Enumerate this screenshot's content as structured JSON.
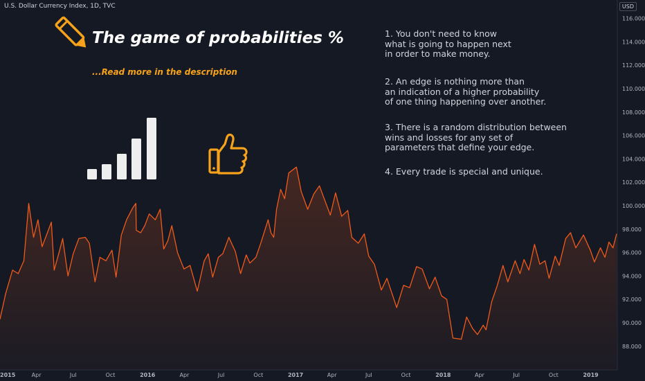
{
  "header": {
    "symbol_title": "U.S. Dollar Currency Index, 1D, TVC",
    "currency": "USD"
  },
  "overlay": {
    "headline": "The game of probabilities %",
    "subline": "...Read more in the description",
    "notes": [
      "1. You don't need to know\nwhat is going to happen next\nin order to make money.",
      "2. An edge is nothing more than\nan indication of a higher probability\nof one thing happening over another.",
      "3. There is a random distribution between\nwins and losses for any set of\nparameters that define your edge.",
      "4. Every trade is special and unique."
    ],
    "icons": [
      "pencil-icon",
      "signal-bars-icon",
      "thumbs-up-icon"
    ],
    "accent_color": "#f7a21b"
  },
  "chart_data": {
    "type": "area",
    "title": "U.S. Dollar Currency Index, 1D, TVC",
    "ylim": [
      86.0,
      117.0
    ],
    "y_ticks": [
      "88.000",
      "90.000",
      "92.000",
      "94.000",
      "96.000",
      "98.000",
      "100.000",
      "102.000",
      "104.000",
      "106.000",
      "108.000",
      "110.000",
      "112.000",
      "114.000",
      "116.000"
    ],
    "x_ticks": [
      "2015",
      "Apr",
      "Jul",
      "Oct",
      "2016",
      "Apr",
      "Jul",
      "Oct",
      "2017",
      "Apr",
      "Jul",
      "Oct",
      "2018",
      "Apr",
      "Jul",
      "Oct",
      "2019"
    ],
    "x_range": [
      "2015-01-01",
      "2019-03-06"
    ],
    "line_color": "#f05a1a",
    "series": [
      {
        "values": [
          {
            "x": "2015-01-01",
            "y": 90.3
          },
          {
            "x": "2015-01-15",
            "y": 92.5
          },
          {
            "x": "2015-02-01",
            "y": 94.5
          },
          {
            "x": "2015-02-15",
            "y": 94.2
          },
          {
            "x": "2015-03-01",
            "y": 95.3
          },
          {
            "x": "2015-03-13",
            "y": 100.2
          },
          {
            "x": "2015-03-25",
            "y": 97.3
          },
          {
            "x": "2015-04-05",
            "y": 98.8
          },
          {
            "x": "2015-04-15",
            "y": 96.5
          },
          {
            "x": "2015-04-25",
            "y": 97.4
          },
          {
            "x": "2015-05-08",
            "y": 98.6
          },
          {
            "x": "2015-05-15",
            "y": 94.5
          },
          {
            "x": "2015-05-27",
            "y": 96.0
          },
          {
            "x": "2015-06-05",
            "y": 97.2
          },
          {
            "x": "2015-06-18",
            "y": 94.0
          },
          {
            "x": "2015-07-01",
            "y": 95.9
          },
          {
            "x": "2015-07-15",
            "y": 97.2
          },
          {
            "x": "2015-07-31",
            "y": 97.3
          },
          {
            "x": "2015-08-10",
            "y": 96.8
          },
          {
            "x": "2015-08-24",
            "y": 93.5
          },
          {
            "x": "2015-09-05",
            "y": 95.6
          },
          {
            "x": "2015-09-20",
            "y": 95.3
          },
          {
            "x": "2015-10-05",
            "y": 96.2
          },
          {
            "x": "2015-10-15",
            "y": 93.9
          },
          {
            "x": "2015-10-28",
            "y": 97.5
          },
          {
            "x": "2015-11-10",
            "y": 98.8
          },
          {
            "x": "2015-11-25",
            "y": 99.8
          },
          {
            "x": "2015-12-03",
            "y": 100.2
          },
          {
            "x": "2015-12-04",
            "y": 97.9
          },
          {
            "x": "2015-12-15",
            "y": 97.7
          },
          {
            "x": "2015-12-25",
            "y": 98.3
          },
          {
            "x": "2016-01-05",
            "y": 99.3
          },
          {
            "x": "2016-01-20",
            "y": 98.8
          },
          {
            "x": "2016-02-01",
            "y": 99.7
          },
          {
            "x": "2016-02-10",
            "y": 96.3
          },
          {
            "x": "2016-02-20",
            "y": 97.0
          },
          {
            "x": "2016-03-01",
            "y": 98.3
          },
          {
            "x": "2016-03-15",
            "y": 96.0
          },
          {
            "x": "2016-03-31",
            "y": 94.6
          },
          {
            "x": "2016-04-15",
            "y": 94.9
          },
          {
            "x": "2016-05-03",
            "y": 92.7
          },
          {
            "x": "2016-05-20",
            "y": 95.3
          },
          {
            "x": "2016-05-30",
            "y": 95.9
          },
          {
            "x": "2016-06-10",
            "y": 93.9
          },
          {
            "x": "2016-06-24",
            "y": 95.6
          },
          {
            "x": "2016-07-05",
            "y": 95.9
          },
          {
            "x": "2016-07-20",
            "y": 97.3
          },
          {
            "x": "2016-08-05",
            "y": 96.1
          },
          {
            "x": "2016-08-18",
            "y": 94.2
          },
          {
            "x": "2016-09-01",
            "y": 95.8
          },
          {
            "x": "2016-09-10",
            "y": 95.1
          },
          {
            "x": "2016-09-25",
            "y": 95.6
          },
          {
            "x": "2016-10-07",
            "y": 96.8
          },
          {
            "x": "2016-10-25",
            "y": 98.8
          },
          {
            "x": "2016-11-01",
            "y": 97.7
          },
          {
            "x": "2016-11-08",
            "y": 97.3
          },
          {
            "x": "2016-11-15",
            "y": 99.7
          },
          {
            "x": "2016-11-25",
            "y": 101.4
          },
          {
            "x": "2016-12-05",
            "y": 100.6
          },
          {
            "x": "2016-12-15",
            "y": 102.8
          },
          {
            "x": "2017-01-03",
            "y": 103.3
          },
          {
            "x": "2017-01-15",
            "y": 101.2
          },
          {
            "x": "2017-01-31",
            "y": 99.7
          },
          {
            "x": "2017-02-15",
            "y": 101.0
          },
          {
            "x": "2017-03-01",
            "y": 101.7
          },
          {
            "x": "2017-03-15",
            "y": 100.4
          },
          {
            "x": "2017-03-28",
            "y": 99.2
          },
          {
            "x": "2017-04-10",
            "y": 101.1
          },
          {
            "x": "2017-04-25",
            "y": 99.1
          },
          {
            "x": "2017-05-10",
            "y": 99.6
          },
          {
            "x": "2017-05-20",
            "y": 97.3
          },
          {
            "x": "2017-06-05",
            "y": 96.8
          },
          {
            "x": "2017-06-20",
            "y": 97.6
          },
          {
            "x": "2017-07-01",
            "y": 95.7
          },
          {
            "x": "2017-07-15",
            "y": 95.0
          },
          {
            "x": "2017-08-01",
            "y": 92.8
          },
          {
            "x": "2017-08-15",
            "y": 93.8
          },
          {
            "x": "2017-09-08",
            "y": 91.3
          },
          {
            "x": "2017-09-25",
            "y": 93.2
          },
          {
            "x": "2017-10-10",
            "y": 93.0
          },
          {
            "x": "2017-10-27",
            "y": 94.8
          },
          {
            "x": "2017-11-10",
            "y": 94.6
          },
          {
            "x": "2017-11-28",
            "y": 92.9
          },
          {
            "x": "2017-12-12",
            "y": 93.9
          },
          {
            "x": "2017-12-28",
            "y": 92.3
          },
          {
            "x": "2018-01-10",
            "y": 92.0
          },
          {
            "x": "2018-01-25",
            "y": 88.7
          },
          {
            "x": "2018-02-15",
            "y": 88.6
          },
          {
            "x": "2018-02-28",
            "y": 90.5
          },
          {
            "x": "2018-03-15",
            "y": 89.5
          },
          {
            "x": "2018-03-27",
            "y": 89.0
          },
          {
            "x": "2018-04-10",
            "y": 89.8
          },
          {
            "x": "2018-04-17",
            "y": 89.4
          },
          {
            "x": "2018-05-01",
            "y": 91.8
          },
          {
            "x": "2018-05-15",
            "y": 93.2
          },
          {
            "x": "2018-05-29",
            "y": 94.9
          },
          {
            "x": "2018-06-10",
            "y": 93.5
          },
          {
            "x": "2018-06-28",
            "y": 95.3
          },
          {
            "x": "2018-07-10",
            "y": 94.2
          },
          {
            "x": "2018-07-20",
            "y": 95.4
          },
          {
            "x": "2018-08-01",
            "y": 94.5
          },
          {
            "x": "2018-08-15",
            "y": 96.7
          },
          {
            "x": "2018-08-28",
            "y": 95.0
          },
          {
            "x": "2018-09-10",
            "y": 95.3
          },
          {
            "x": "2018-09-20",
            "y": 93.8
          },
          {
            "x": "2018-10-05",
            "y": 95.7
          },
          {
            "x": "2018-10-15",
            "y": 94.9
          },
          {
            "x": "2018-10-31",
            "y": 97.2
          },
          {
            "x": "2018-11-12",
            "y": 97.7
          },
          {
            "x": "2018-11-25",
            "y": 96.4
          },
          {
            "x": "2018-12-14",
            "y": 97.5
          },
          {
            "x": "2018-12-31",
            "y": 96.2
          },
          {
            "x": "2019-01-10",
            "y": 95.2
          },
          {
            "x": "2019-01-25",
            "y": 96.4
          },
          {
            "x": "2019-02-05",
            "y": 95.6
          },
          {
            "x": "2019-02-15",
            "y": 96.9
          },
          {
            "x": "2019-02-25",
            "y": 96.4
          },
          {
            "x": "2019-03-06",
            "y": 97.6
          }
        ]
      }
    ]
  }
}
